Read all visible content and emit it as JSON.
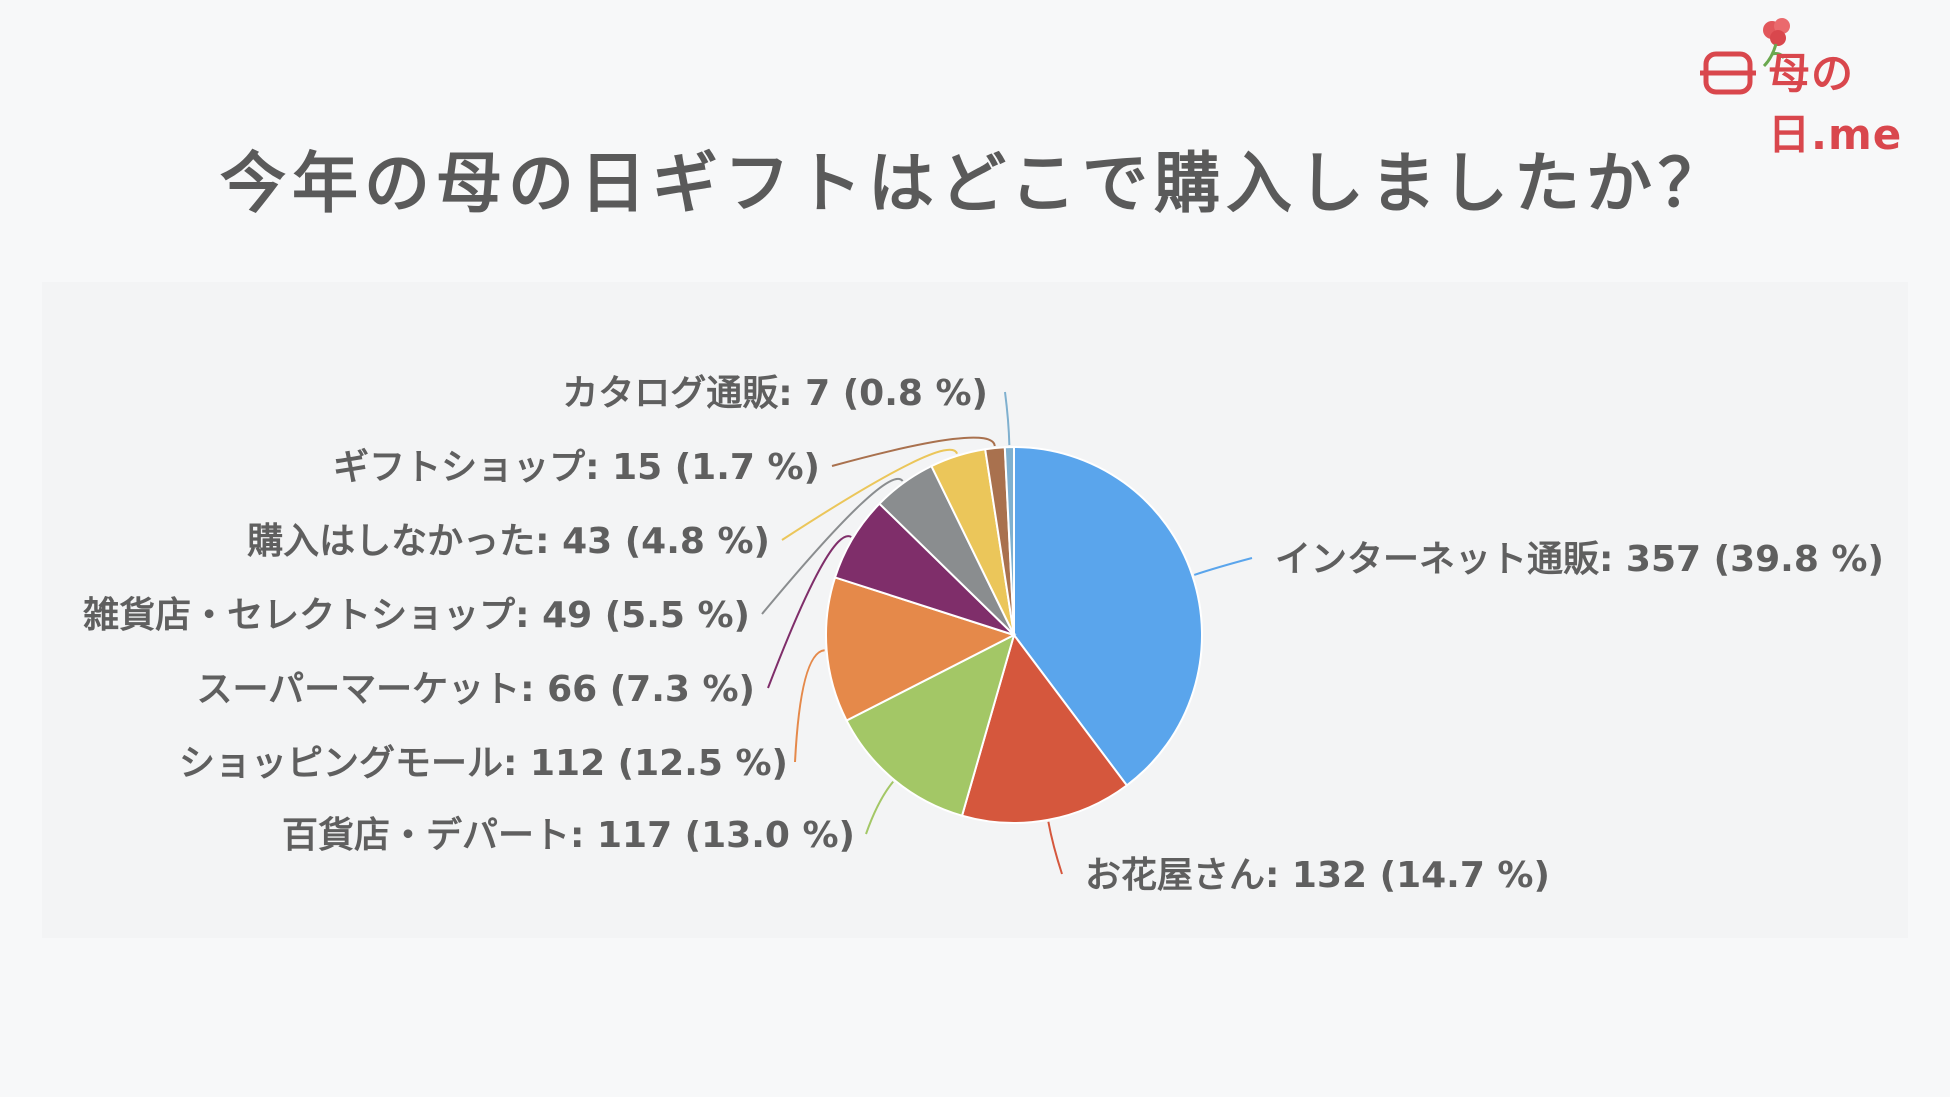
{
  "logo": {
    "text": "母の日.me"
  },
  "chart_data": {
    "type": "pie",
    "title": "今年の母の日ギフトはどこで購入しましたか？",
    "slices": [
      {
        "label": "インターネット通販",
        "value": 357,
        "percent": 39.8,
        "color": "#5aa5ec",
        "text": "インターネット通販: 357 (39.8 %)"
      },
      {
        "label": "お花屋さん",
        "value": 132,
        "percent": 14.7,
        "color": "#d5573d",
        "text": "お花屋さん: 132 (14.7 %)"
      },
      {
        "label": "百貨店・デパート",
        "value": 117,
        "percent": 13.0,
        "color": "#a3c766",
        "text": "百貨店・デパート: 117 (13.0 %)"
      },
      {
        "label": "ショッピングモール",
        "value": 112,
        "percent": 12.5,
        "color": "#e5894a",
        "text": "ショッピングモール: 112 (12.5 %)"
      },
      {
        "label": "スーパーマーケット",
        "value": 66,
        "percent": 7.3,
        "color": "#7f2e6a",
        "text": "スーパーマーケット: 66 (7.3 %)"
      },
      {
        "label": "雑貨店・セレクトショップ",
        "value": 49,
        "percent": 5.5,
        "color": "#8a8d8f",
        "text": "雑貨店・セレクトショップ: 49 (5.5 %)"
      },
      {
        "label": "購入はしなかった",
        "value": 43,
        "percent": 4.8,
        "color": "#ebc65a",
        "text": "購入はしなかった: 43 (4.8 %)"
      },
      {
        "label": "ギフトショップ",
        "value": 15,
        "percent": 1.7,
        "color": "#a9714e",
        "text": "ギフトショップ: 15 (1.7 %)"
      },
      {
        "label": "カタログ通販",
        "value": 7,
        "percent": 0.8,
        "color": "#7fb0cf",
        "text": "カタログ通販: 7 (0.8 %)"
      }
    ]
  }
}
